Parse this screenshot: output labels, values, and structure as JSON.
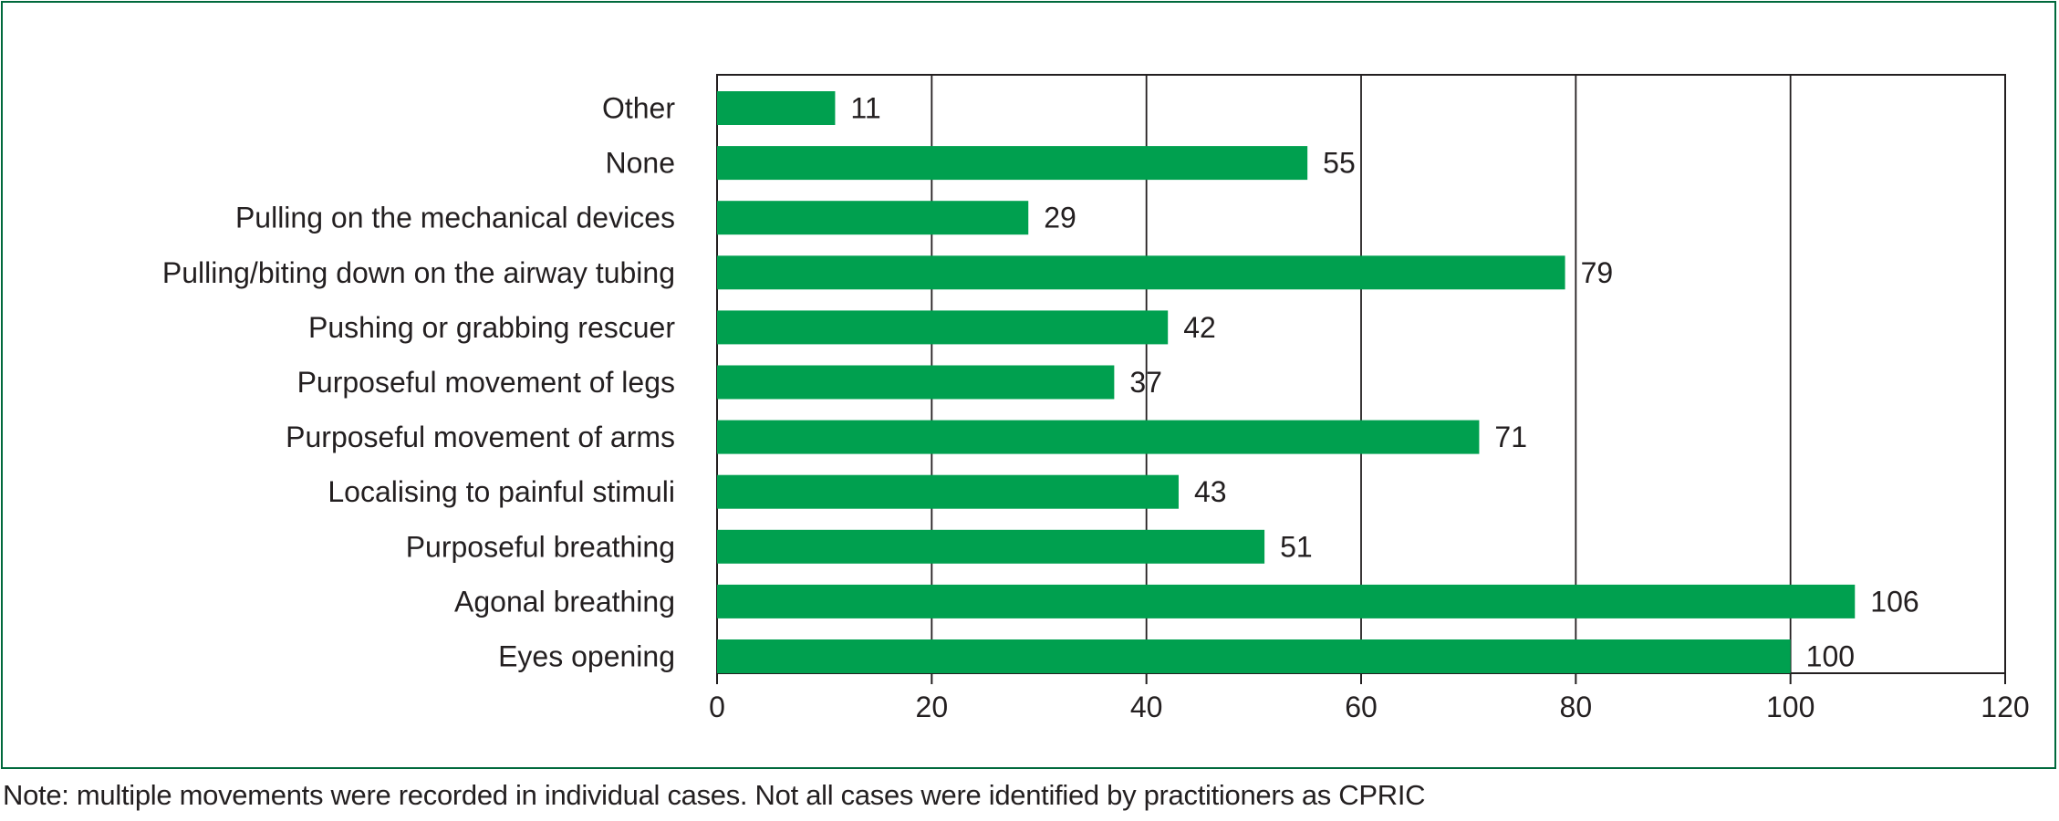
{
  "chart_data": {
    "type": "bar",
    "orientation": "horizontal",
    "categories": [
      "Other",
      "None",
      "Pulling on the mechanical devices",
      "Pulling/biting down on the airway tubing",
      "Pushing or grabbing rescuer",
      "Purposeful movement of legs",
      "Purposeful movement of arms",
      "Localising to painful stimuli",
      "Purposeful breathing",
      "Agonal breathing",
      "Eyes opening"
    ],
    "values": [
      11,
      55,
      29,
      79,
      42,
      37,
      71,
      43,
      51,
      106,
      100
    ],
    "xlim": [
      0,
      120
    ],
    "xticks": [
      0,
      20,
      40,
      60,
      80,
      100,
      120
    ],
    "title": "",
    "xlabel": "",
    "ylabel": "",
    "grid": "vertical",
    "data_labels": true,
    "bar_color": "#00a04f",
    "grid_color": "#231f20"
  },
  "note": "Note: multiple movements were recorded in individual cases. Not all cases were identified by practitioners as CPRIC",
  "colors": {
    "frame": "#00693c",
    "text": "#231f20"
  }
}
